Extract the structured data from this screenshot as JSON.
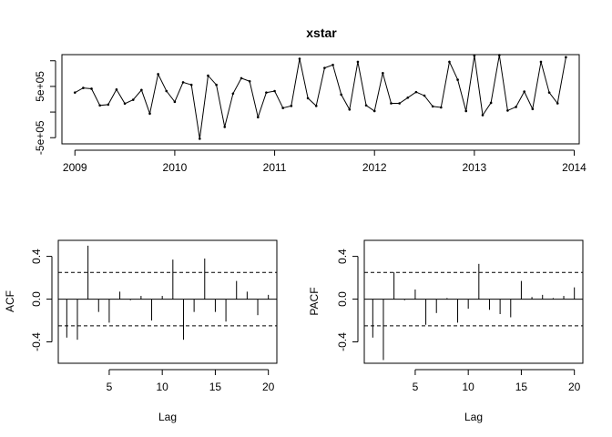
{
  "chart_data": [
    {
      "type": "line",
      "title": "xstar",
      "xlabel": "",
      "ylabel": "",
      "xlim": [
        2008.87,
        2014.05
      ],
      "ylim": [
        -620000,
        1120000
      ],
      "x_ticks": [
        2009,
        2010,
        2011,
        2012,
        2013,
        2014
      ],
      "x_tick_labels": [
        "2009",
        "2010",
        "2011",
        "2012",
        "2013",
        "2014"
      ],
      "y_ticks": [
        -500000,
        0,
        500000,
        1000000
      ],
      "y_tick_labels": [
        "-5e+05",
        "",
        "5e+05",
        ""
      ],
      "x_start": 2009,
      "x_step": 0.083333,
      "values": [
        380000,
        470000,
        455000,
        130000,
        145000,
        440000,
        165000,
        240000,
        430000,
        -30000,
        740000,
        410000,
        200000,
        580000,
        530000,
        -520000,
        710000,
        530000,
        -290000,
        360000,
        660000,
        600000,
        -100000,
        380000,
        410000,
        80000,
        120000,
        1040000,
        270000,
        120000,
        860000,
        920000,
        340000,
        50000,
        980000,
        130000,
        20000,
        760000,
        170000,
        170000,
        280000,
        390000,
        320000,
        110000,
        90000,
        980000,
        630000,
        20000,
        1100000,
        -60000,
        180000,
        1110000,
        30000,
        100000,
        400000,
        60000,
        980000,
        380000,
        170000,
        1070000
      ]
    },
    {
      "type": "bar",
      "title": "",
      "xlabel": "Lag",
      "ylabel": "ACF",
      "xlim": [
        0.2,
        20.8
      ],
      "ylim": [
        -0.6,
        0.55
      ],
      "x_ticks": [
        5,
        10,
        15,
        20
      ],
      "x_tick_labels": [
        "5",
        "10",
        "15",
        "20"
      ],
      "y_ticks": [
        -0.4,
        0.0,
        0.4
      ],
      "y_tick_labels": [
        "-0.4",
        "0.0",
        "0.4"
      ],
      "ci": 0.25,
      "lags": [
        1,
        2,
        3,
        4,
        5,
        6,
        7,
        8,
        9,
        10,
        11,
        12,
        13,
        14,
        15,
        16,
        17,
        18,
        19,
        20
      ],
      "values": [
        -0.36,
        -0.38,
        0.5,
        -0.12,
        -0.22,
        0.07,
        -0.01,
        0.03,
        -0.2,
        0.03,
        0.37,
        -0.38,
        -0.12,
        0.38,
        -0.12,
        -0.21,
        0.17,
        0.07,
        -0.15,
        0.04
      ]
    },
    {
      "type": "bar",
      "title": "",
      "xlabel": "Lag",
      "ylabel": "PACF",
      "xlim": [
        0.2,
        20.8
      ],
      "ylim": [
        -0.6,
        0.55
      ],
      "x_ticks": [
        5,
        10,
        15,
        20
      ],
      "x_tick_labels": [
        "5",
        "10",
        "15",
        "20"
      ],
      "y_ticks": [
        -0.4,
        0.0,
        0.4
      ],
      "y_tick_labels": [
        "-0.4",
        "0.0",
        "0.4"
      ],
      "ci": 0.25,
      "lags": [
        1,
        2,
        3,
        4,
        5,
        6,
        7,
        8,
        9,
        10,
        11,
        12,
        13,
        14,
        15,
        16,
        17,
        18,
        19,
        20
      ],
      "values": [
        -0.36,
        -0.57,
        0.25,
        -0.01,
        0.09,
        -0.24,
        -0.13,
        0.01,
        -0.22,
        -0.09,
        0.33,
        -0.1,
        -0.14,
        -0.17,
        0.17,
        0.02,
        0.04,
        0.01,
        0.03,
        0.11
      ]
    }
  ]
}
